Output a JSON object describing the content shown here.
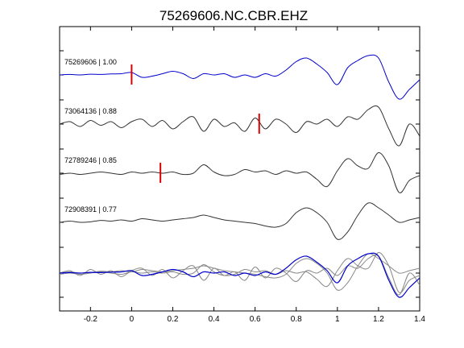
{
  "chart_data": {
    "type": "line",
    "title": "75269606.NC.CBR.EHZ",
    "xlabel": "",
    "ylabel": "",
    "xlim": [
      -0.35,
      1.4
    ],
    "xticks": [
      -0.2,
      0,
      0.2,
      0.4,
      0.6,
      0.8,
      1,
      1.2,
      1.4
    ],
    "xtick_labels": [
      "-0.2",
      "0",
      "0.2",
      "0.4",
      "0.6",
      "0.8",
      "1",
      "1.2",
      "1.4"
    ],
    "grid": false,
    "legend": "none",
    "colors": {
      "reference": "#0000cc",
      "trace": "#333333",
      "overlay": "#888888",
      "pick": "#dd0000",
      "axis": "#000000"
    },
    "series": [
      {
        "label": "75269606 | 1.00",
        "pick_time": 0.0,
        "x": [
          -0.35,
          -0.3,
          -0.25,
          -0.2,
          -0.15,
          -0.1,
          -0.05,
          0.0,
          0.05,
          0.1,
          0.15,
          0.2,
          0.25,
          0.3,
          0.35,
          0.4,
          0.45,
          0.5,
          0.55,
          0.6,
          0.65,
          0.7,
          0.75,
          0.8,
          0.85,
          0.9,
          0.95,
          1.0,
          1.05,
          1.1,
          1.15,
          1.2,
          1.25,
          1.3,
          1.35,
          1.4
        ],
        "y": [
          0.0,
          0.02,
          0.0,
          0.03,
          0.02,
          0.04,
          0.05,
          0.1,
          -0.1,
          -0.05,
          0.05,
          0.15,
          0.05,
          -0.15,
          0.05,
          0.0,
          0.05,
          -0.1,
          0.0,
          -0.1,
          0.05,
          -0.05,
          0.2,
          0.55,
          0.7,
          0.45,
          0.1,
          -0.4,
          0.3,
          0.6,
          0.8,
          0.7,
          -0.3,
          -1.0,
          -0.6,
          -0.2
        ]
      },
      {
        "label": "73064136 | 0.88",
        "pick_time": 0.62,
        "x": [
          -0.35,
          -0.3,
          -0.25,
          -0.2,
          -0.15,
          -0.1,
          -0.05,
          0.0,
          0.05,
          0.1,
          0.15,
          0.2,
          0.25,
          0.3,
          0.35,
          0.4,
          0.45,
          0.5,
          0.55,
          0.6,
          0.65,
          0.7,
          0.75,
          0.8,
          0.85,
          0.9,
          0.95,
          1.0,
          1.05,
          1.1,
          1.15,
          1.2,
          1.25,
          1.3,
          1.35,
          1.4
        ],
        "y": [
          0.0,
          0.1,
          -0.1,
          0.15,
          -0.05,
          0.1,
          -0.15,
          0.1,
          0.2,
          -0.1,
          0.15,
          -0.2,
          0.1,
          0.3,
          -0.3,
          0.2,
          -0.1,
          0.05,
          -0.3,
          0.25,
          -0.2,
          0.2,
          0.0,
          -0.35,
          0.1,
          0.0,
          0.2,
          -0.1,
          0.3,
          0.2,
          0.6,
          0.7,
          -0.2,
          -0.9,
          0.0,
          -0.5
        ]
      },
      {
        "label": "72789246 | 0.85",
        "pick_time": 0.14,
        "x": [
          -0.35,
          -0.3,
          -0.25,
          -0.2,
          -0.15,
          -0.1,
          -0.05,
          0.0,
          0.05,
          0.1,
          0.15,
          0.2,
          0.25,
          0.3,
          0.35,
          0.4,
          0.45,
          0.5,
          0.55,
          0.6,
          0.65,
          0.7,
          0.75,
          0.8,
          0.85,
          0.9,
          0.95,
          1.0,
          1.05,
          1.1,
          1.15,
          1.2,
          1.25,
          1.3,
          1.35,
          1.4
        ],
        "y": [
          -0.05,
          0.0,
          -0.05,
          0.0,
          0.05,
          0.0,
          -0.05,
          0.05,
          0.0,
          0.05,
          0.0,
          0.05,
          -0.05,
          0.0,
          0.35,
          0.05,
          -0.1,
          -0.05,
          0.15,
          0.05,
          0.1,
          -0.05,
          0.1,
          0.0,
          0.05,
          -0.25,
          -0.55,
          0.1,
          0.6,
          0.3,
          0.2,
          0.85,
          0.3,
          -0.8,
          -0.3,
          -0.1
        ]
      },
      {
        "label": "72908391 | 0.77",
        "pick_time": null,
        "x": [
          -0.35,
          -0.3,
          -0.25,
          -0.2,
          -0.15,
          -0.1,
          -0.05,
          0.0,
          0.05,
          0.1,
          0.15,
          0.2,
          0.25,
          0.3,
          0.35,
          0.4,
          0.45,
          0.5,
          0.55,
          0.6,
          0.65,
          0.7,
          0.75,
          0.8,
          0.85,
          0.9,
          0.95,
          1.0,
          1.05,
          1.1,
          1.15,
          1.2,
          1.25,
          1.3,
          1.35,
          1.4
        ],
        "y": [
          0.0,
          0.05,
          0.0,
          0.02,
          0.08,
          0.05,
          0.1,
          0.05,
          0.15,
          0.1,
          0.05,
          0.1,
          0.15,
          0.2,
          0.3,
          0.2,
          0.1,
          0.05,
          0.0,
          -0.05,
          -0.15,
          -0.2,
          -0.05,
          0.4,
          0.6,
          0.4,
          0.0,
          -0.7,
          -0.4,
          0.3,
          0.8,
          0.6,
          0.3,
          0.0,
          0.1,
          0.2
        ]
      }
    ]
  }
}
